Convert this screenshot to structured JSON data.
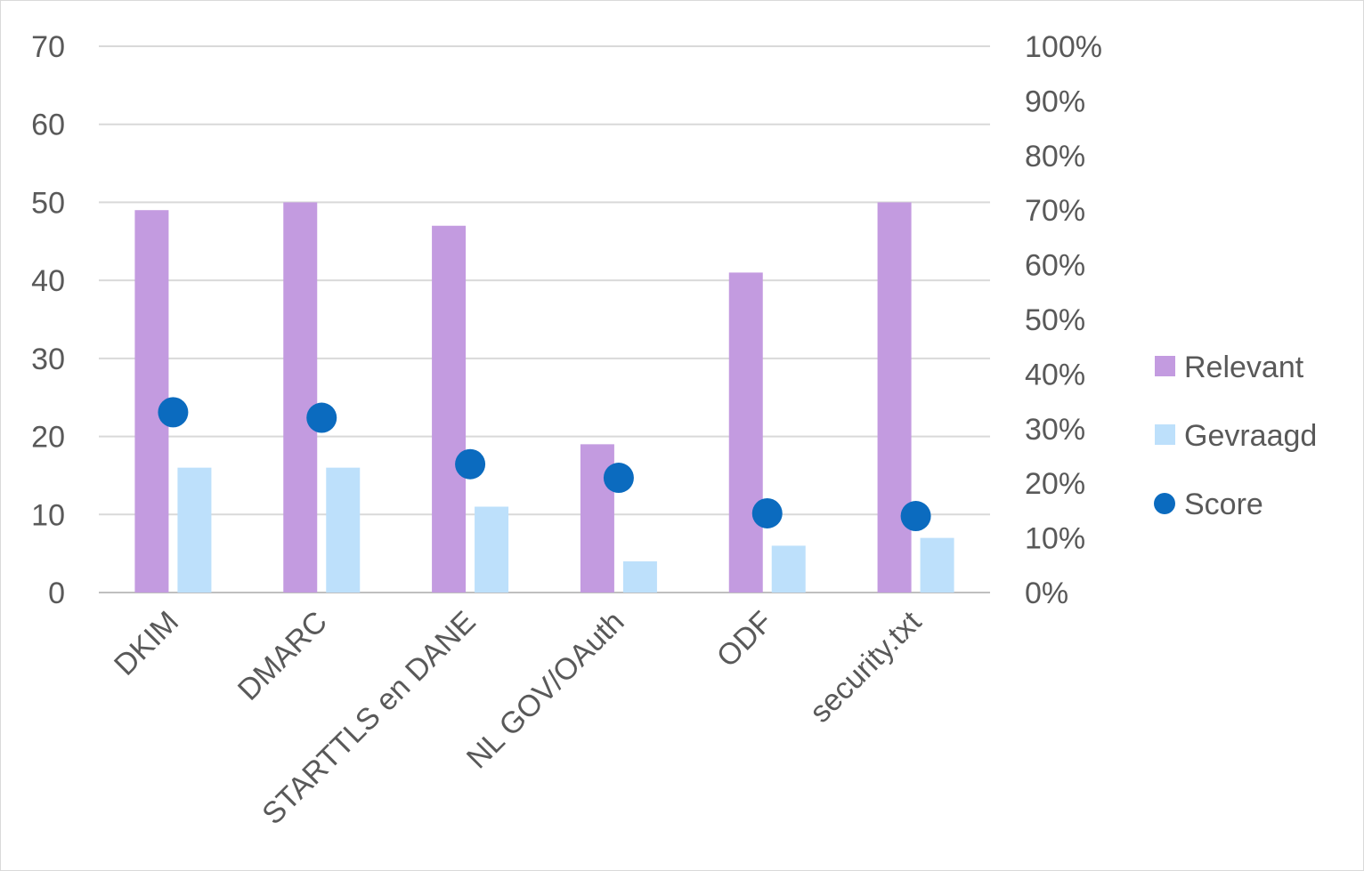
{
  "chart_data": {
    "type": "bar",
    "title": "",
    "xlabel": "",
    "ylabel": "",
    "y2label": "",
    "categories": [
      "DKIM",
      "DMARC",
      "STARTTLS en DANE",
      "NL GOV/OAuth",
      "ODF",
      "security.txt"
    ],
    "ylim": [
      0,
      70
    ],
    "y_ticks": [
      "0",
      "10",
      "20",
      "30",
      "40",
      "50",
      "60",
      "70"
    ],
    "y2lim": [
      0,
      1
    ],
    "y2_ticks": [
      "0%",
      "10%",
      "20%",
      "30%",
      "40%",
      "50%",
      "60%",
      "70%",
      "80%",
      "90%",
      "100%"
    ],
    "grid": true,
    "legend_position": "right",
    "series": [
      {
        "name": "Relevant",
        "kind": "bar",
        "axis": "left",
        "color": "#c39be0",
        "values": [
          49,
          50,
          47,
          19,
          41,
          50
        ]
      },
      {
        "name": "Gevraagd",
        "kind": "bar",
        "axis": "left",
        "color": "#bde0fb",
        "values": [
          16,
          16,
          11,
          4,
          6,
          7
        ]
      },
      {
        "name": "Score",
        "kind": "marker",
        "axis": "right",
        "color": "#0b6bbf",
        "values": [
          0.33,
          0.32,
          0.235,
          0.21,
          0.145,
          0.14
        ]
      }
    ]
  }
}
